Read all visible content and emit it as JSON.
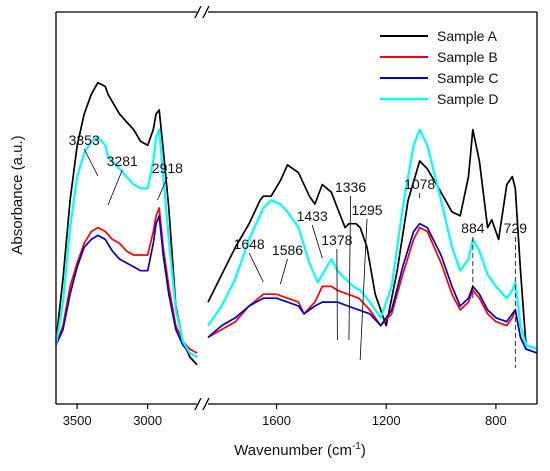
{
  "chart_data": {
    "type": "line",
    "xlabel": "Wavenumber (cm",
    "xlabel_sup": "-1",
    "xlabel_close": ")",
    "ylabel": "Absorbance (a.u.)",
    "x_axis_break": true,
    "x_reversed": true,
    "segments": [
      {
        "xlim": [
          3650,
          2650
        ],
        "ticks": [
          "3500",
          "3000"
        ]
      },
      {
        "xlim": [
          1850,
          650
        ],
        "ticks": [
          "1600",
          "1200",
          "800"
        ]
      }
    ],
    "legend_position": "top-right",
    "annotations": [
      "3353",
      "3281",
      "2918",
      "1648",
      "1586",
      "1433",
      "1378",
      "1336",
      "1295",
      "1078",
      "884",
      "729"
    ],
    "series": [
      {
        "name": "Sample A",
        "color": "#000000",
        "seg1": [
          [
            3650,
            0.16
          ],
          [
            3600,
            0.32
          ],
          [
            3550,
            0.52
          ],
          [
            3500,
            0.66
          ],
          [
            3450,
            0.74
          ],
          [
            3400,
            0.79
          ],
          [
            3353,
            0.82
          ],
          [
            3300,
            0.81
          ],
          [
            3281,
            0.79
          ],
          [
            3200,
            0.74
          ],
          [
            3150,
            0.72
          ],
          [
            3100,
            0.7
          ],
          [
            3050,
            0.67
          ],
          [
            3000,
            0.66
          ],
          [
            2960,
            0.7
          ],
          [
            2940,
            0.74
          ],
          [
            2918,
            0.75
          ],
          [
            2890,
            0.65
          ],
          [
            2850,
            0.5
          ],
          [
            2800,
            0.25
          ],
          [
            2750,
            0.16
          ],
          [
            2700,
            0.12
          ],
          [
            2650,
            0.1
          ]
        ],
        "seg2": [
          [
            1850,
            0.26
          ],
          [
            1800,
            0.33
          ],
          [
            1750,
            0.4
          ],
          [
            1700,
            0.46
          ],
          [
            1660,
            0.52
          ],
          [
            1648,
            0.53
          ],
          [
            1620,
            0.53
          ],
          [
            1586,
            0.57
          ],
          [
            1560,
            0.61
          ],
          [
            1520,
            0.59
          ],
          [
            1480,
            0.53
          ],
          [
            1460,
            0.51
          ],
          [
            1433,
            0.56
          ],
          [
            1400,
            0.54
          ],
          [
            1378,
            0.5
          ],
          [
            1350,
            0.45
          ],
          [
            1336,
            0.46
          ],
          [
            1310,
            0.46
          ],
          [
            1295,
            0.45
          ],
          [
            1270,
            0.4
          ],
          [
            1240,
            0.28
          ],
          [
            1200,
            0.2
          ],
          [
            1160,
            0.34
          ],
          [
            1120,
            0.52
          ],
          [
            1078,
            0.62
          ],
          [
            1050,
            0.6
          ],
          [
            1000,
            0.54
          ],
          [
            960,
            0.49
          ],
          [
            930,
            0.48
          ],
          [
            900,
            0.58
          ],
          [
            884,
            0.7
          ],
          [
            860,
            0.62
          ],
          [
            830,
            0.45
          ],
          [
            815,
            0.47
          ],
          [
            790,
            0.42
          ],
          [
            760,
            0.56
          ],
          [
            740,
            0.58
          ],
          [
            729,
            0.55
          ],
          [
            710,
            0.34
          ],
          [
            690,
            0.15
          ],
          [
            650,
            0.14
          ]
        ]
      },
      {
        "name": "Sample B",
        "color": "#ff0000",
        "seg1": [
          [
            3650,
            0.15
          ],
          [
            3600,
            0.2
          ],
          [
            3550,
            0.3
          ],
          [
            3500,
            0.36
          ],
          [
            3450,
            0.41
          ],
          [
            3400,
            0.44
          ],
          [
            3353,
            0.45
          ],
          [
            3300,
            0.44
          ],
          [
            3250,
            0.42
          ],
          [
            3200,
            0.41
          ],
          [
            3150,
            0.39
          ],
          [
            3100,
            0.38
          ],
          [
            3050,
            0.38
          ],
          [
            3000,
            0.38
          ],
          [
            2960,
            0.44
          ],
          [
            2940,
            0.48
          ],
          [
            2918,
            0.5
          ],
          [
            2890,
            0.4
          ],
          [
            2850,
            0.3
          ],
          [
            2800,
            0.2
          ],
          [
            2750,
            0.16
          ],
          [
            2700,
            0.14
          ],
          [
            2650,
            0.13
          ]
        ],
        "seg2": [
          [
            1850,
            0.17
          ],
          [
            1800,
            0.19
          ],
          [
            1750,
            0.21
          ],
          [
            1700,
            0.25
          ],
          [
            1648,
            0.28
          ],
          [
            1600,
            0.28
          ],
          [
            1560,
            0.27
          ],
          [
            1520,
            0.26
          ],
          [
            1500,
            0.23
          ],
          [
            1460,
            0.26
          ],
          [
            1433,
            0.3
          ],
          [
            1400,
            0.3
          ],
          [
            1378,
            0.29
          ],
          [
            1340,
            0.28
          ],
          [
            1300,
            0.27
          ],
          [
            1260,
            0.24
          ],
          [
            1220,
            0.2
          ],
          [
            1180,
            0.23
          ],
          [
            1140,
            0.33
          ],
          [
            1100,
            0.42
          ],
          [
            1078,
            0.45
          ],
          [
            1050,
            0.44
          ],
          [
            1000,
            0.36
          ],
          [
            960,
            0.28
          ],
          [
            930,
            0.24
          ],
          [
            900,
            0.26
          ],
          [
            884,
            0.29
          ],
          [
            860,
            0.27
          ],
          [
            830,
            0.23
          ],
          [
            800,
            0.21
          ],
          [
            760,
            0.2
          ],
          [
            740,
            0.22
          ],
          [
            729,
            0.24
          ],
          [
            710,
            0.17
          ],
          [
            690,
            0.14
          ],
          [
            650,
            0.13
          ]
        ]
      },
      {
        "name": "Sample C",
        "color": "#0000cc",
        "seg1": [
          [
            3650,
            0.15
          ],
          [
            3600,
            0.19
          ],
          [
            3550,
            0.28
          ],
          [
            3500,
            0.35
          ],
          [
            3450,
            0.4
          ],
          [
            3400,
            0.42
          ],
          [
            3353,
            0.43
          ],
          [
            3300,
            0.42
          ],
          [
            3250,
            0.39
          ],
          [
            3200,
            0.37
          ],
          [
            3150,
            0.36
          ],
          [
            3100,
            0.35
          ],
          [
            3050,
            0.34
          ],
          [
            3000,
            0.34
          ],
          [
            2960,
            0.41
          ],
          [
            2940,
            0.46
          ],
          [
            2918,
            0.48
          ],
          [
            2890,
            0.38
          ],
          [
            2850,
            0.28
          ],
          [
            2800,
            0.19
          ],
          [
            2750,
            0.15
          ],
          [
            2700,
            0.13
          ],
          [
            2650,
            0.12
          ]
        ],
        "seg2": [
          [
            1850,
            0.17
          ],
          [
            1800,
            0.2
          ],
          [
            1750,
            0.22
          ],
          [
            1700,
            0.25
          ],
          [
            1648,
            0.27
          ],
          [
            1600,
            0.27
          ],
          [
            1560,
            0.26
          ],
          [
            1520,
            0.25
          ],
          [
            1500,
            0.23
          ],
          [
            1460,
            0.25
          ],
          [
            1433,
            0.26
          ],
          [
            1400,
            0.26
          ],
          [
            1378,
            0.26
          ],
          [
            1340,
            0.25
          ],
          [
            1300,
            0.24
          ],
          [
            1260,
            0.23
          ],
          [
            1220,
            0.2
          ],
          [
            1180,
            0.24
          ],
          [
            1140,
            0.35
          ],
          [
            1100,
            0.44
          ],
          [
            1078,
            0.46
          ],
          [
            1050,
            0.45
          ],
          [
            1000,
            0.38
          ],
          [
            960,
            0.3
          ],
          [
            930,
            0.25
          ],
          [
            900,
            0.27
          ],
          [
            884,
            0.3
          ],
          [
            860,
            0.28
          ],
          [
            830,
            0.24
          ],
          [
            800,
            0.22
          ],
          [
            760,
            0.21
          ],
          [
            740,
            0.23
          ],
          [
            729,
            0.24
          ],
          [
            710,
            0.17
          ],
          [
            690,
            0.14
          ],
          [
            650,
            0.13
          ]
        ]
      },
      {
        "name": "Sample D",
        "color": "#00ffff",
        "seg1": [
          [
            3650,
            0.15
          ],
          [
            3600,
            0.26
          ],
          [
            3550,
            0.45
          ],
          [
            3500,
            0.58
          ],
          [
            3450,
            0.64
          ],
          [
            3400,
            0.67
          ],
          [
            3353,
            0.68
          ],
          [
            3300,
            0.66
          ],
          [
            3281,
            0.63
          ],
          [
            3200,
            0.6
          ],
          [
            3150,
            0.58
          ],
          [
            3100,
            0.56
          ],
          [
            3050,
            0.55
          ],
          [
            3000,
            0.55
          ],
          [
            2960,
            0.62
          ],
          [
            2940,
            0.68
          ],
          [
            2918,
            0.7
          ],
          [
            2890,
            0.58
          ],
          [
            2850,
            0.42
          ],
          [
            2800,
            0.24
          ],
          [
            2750,
            0.16
          ],
          [
            2700,
            0.13
          ],
          [
            2650,
            0.12
          ]
        ],
        "seg2": [
          [
            1850,
            0.2
          ],
          [
            1800,
            0.25
          ],
          [
            1750,
            0.32
          ],
          [
            1700,
            0.42
          ],
          [
            1648,
            0.5
          ],
          [
            1620,
            0.52
          ],
          [
            1586,
            0.51
          ],
          [
            1560,
            0.49
          ],
          [
            1520,
            0.45
          ],
          [
            1480,
            0.36
          ],
          [
            1450,
            0.31
          ],
          [
            1433,
            0.33
          ],
          [
            1400,
            0.37
          ],
          [
            1378,
            0.34
          ],
          [
            1350,
            0.32
          ],
          [
            1320,
            0.3
          ],
          [
            1295,
            0.29
          ],
          [
            1260,
            0.26
          ],
          [
            1220,
            0.22
          ],
          [
            1180,
            0.3
          ],
          [
            1140,
            0.5
          ],
          [
            1100,
            0.66
          ],
          [
            1078,
            0.7
          ],
          [
            1050,
            0.66
          ],
          [
            1000,
            0.52
          ],
          [
            960,
            0.4
          ],
          [
            930,
            0.34
          ],
          [
            900,
            0.37
          ],
          [
            884,
            0.42
          ],
          [
            860,
            0.39
          ],
          [
            830,
            0.33
          ],
          [
            800,
            0.3
          ],
          [
            760,
            0.27
          ],
          [
            740,
            0.29
          ],
          [
            729,
            0.31
          ],
          [
            710,
            0.2
          ],
          [
            690,
            0.15
          ],
          [
            650,
            0.14
          ]
        ]
      }
    ]
  }
}
